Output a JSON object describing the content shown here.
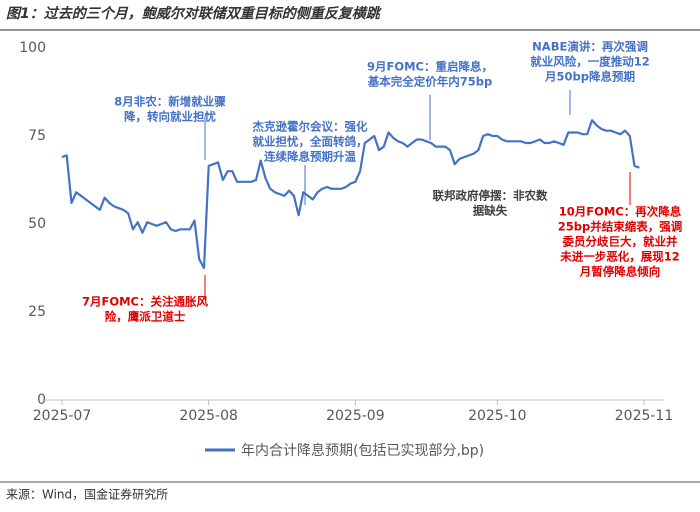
{
  "chart_data": {
    "type": "line",
    "title": "图1：过去的三个月，鲍威尔对联储双重目标的侧重反复横跳",
    "source": "来源：Wind，国金证券研究所",
    "categories": [
      "2025-07",
      null,
      null,
      null,
      null,
      null,
      null,
      null,
      null,
      null,
      null,
      null,
      null,
      null,
      null,
      null,
      null,
      null,
      null,
      null,
      null,
      null,
      null,
      null,
      null,
      null,
      null,
      null,
      null,
      null,
      null,
      "2025-08",
      null,
      null,
      null,
      null,
      null,
      null,
      null,
      null,
      null,
      null,
      null,
      null,
      null,
      null,
      null,
      null,
      null,
      null,
      null,
      null,
      null,
      null,
      null,
      null,
      null,
      null,
      null,
      null,
      null,
      null,
      "2025-09",
      null,
      null,
      null,
      null,
      null,
      null,
      null,
      null,
      null,
      null,
      null,
      null,
      null,
      null,
      null,
      null,
      null,
      null,
      null,
      null,
      null,
      null,
      null,
      null,
      null,
      null,
      null,
      null,
      null,
      "2025-10",
      null,
      null,
      null,
      null,
      null,
      null,
      null,
      null,
      null,
      null,
      null,
      null,
      null,
      null,
      null,
      null,
      null,
      null,
      null,
      null,
      null,
      null,
      null,
      null,
      null,
      null,
      null,
      null,
      null,
      null,
      "2025-11"
    ],
    "series": [
      {
        "name": "年内合计降息预期(包括已实现部分,bp)",
        "color": "#4472c4",
        "values": [
          69,
          69.5,
          56,
          59,
          58,
          57,
          56,
          55,
          54,
          57.5,
          56,
          55,
          54.5,
          54,
          53,
          48.5,
          50.5,
          47.5,
          50.5,
          50,
          49.5,
          50,
          50.5,
          48.5,
          48,
          48.5,
          48.5,
          48.5,
          51,
          40,
          37.5,
          66.5,
          67,
          67.5,
          62.5,
          65,
          65,
          62,
          62,
          62,
          62,
          62.5,
          68,
          63,
          60,
          59,
          58.5,
          58,
          59.5,
          58,
          52.5,
          59,
          58,
          57,
          59,
          60,
          60.5,
          60,
          60,
          60,
          60.5,
          61.5,
          62,
          65,
          73,
          74,
          75,
          71,
          72,
          76,
          74.5,
          73.5,
          73,
          72,
          73,
          74,
          74,
          73.5,
          73,
          72,
          72,
          72,
          71,
          67,
          68.5,
          69,
          69.5,
          70,
          71,
          75,
          75.5,
          75,
          75,
          74,
          73.5,
          73.5,
          73.5,
          73.5,
          73,
          73,
          73.5,
          74,
          73,
          73,
          73.5,
          73,
          72.5,
          76,
          76,
          76,
          75.5,
          75.5,
          79.5,
          78,
          77,
          76.5,
          76.5,
          76,
          75.5,
          76.5,
          75,
          66.5,
          66,
          null
        ]
      }
    ],
    "ylim": [
      0,
      100
    ],
    "yticks": [
      0,
      25,
      50,
      75,
      100
    ],
    "grid": false,
    "annotations": [
      {
        "color": "#4472c4",
        "lines": [
          "8月非农：新增就业骤",
          "降，转向就业担忧"
        ]
      },
      {
        "color": "#4472c4",
        "lines": [
          "杰克逊霍尔会议：强化",
          "就业担忧，全面转鸽，",
          "连续降息预期升温"
        ]
      },
      {
        "color": "#4472c4",
        "lines": [
          "9月FOMC：重启降息，",
          "基本完全定价年内75bp"
        ]
      },
      {
        "color": "#4472c4",
        "lines": [
          "NABE演讲：再次强调",
          "就业风险，一度推动12",
          "月50bp降息预期"
        ]
      },
      {
        "color": "#404040",
        "lines": [
          "联邦政府停摆：非农数",
          "据缺失"
        ]
      },
      {
        "color": "#e00000",
        "lines": [
          "7月FOMC：关注通胀风",
          "险，鹰派卫道士"
        ]
      },
      {
        "color": "#e00000",
        "lines": [
          "10月FOMC：再次降息",
          "25bp并结束缩表，强调",
          "委员分歧巨大，就业并",
          "未进一步恶化，展现12",
          "月暂停降息倾向"
        ]
      }
    ]
  }
}
